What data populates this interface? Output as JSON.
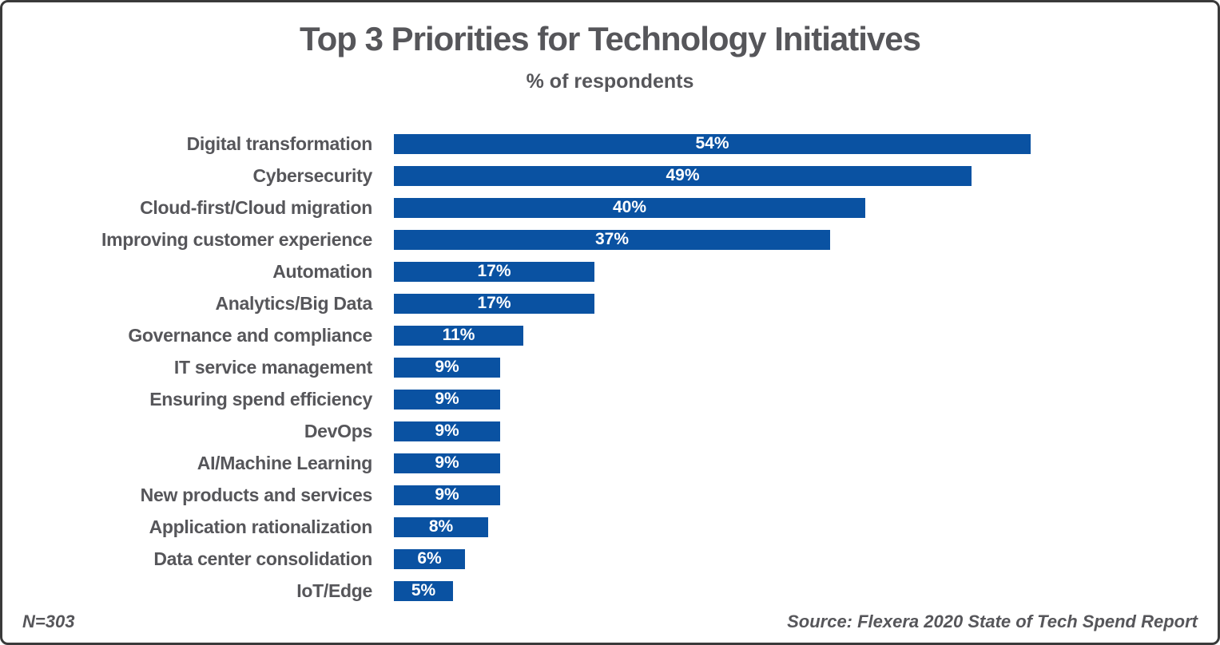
{
  "chart": {
    "title": "Top 3 Priorities for Technology Initiatives",
    "subtitle": "% of respondents",
    "footnote_left": "N=303",
    "footnote_right": "Source: Flexera 2020 State of Tech Spend Report",
    "bar_color": "#0a52a2",
    "text_color": "#56565a"
  },
  "chart_data": {
    "type": "bar",
    "orientation": "horizontal",
    "title": "Top 3 Priorities for Technology Initiatives",
    "subtitle": "% of respondents",
    "categories": [
      "Digital transformation",
      "Cybersecurity",
      "Cloud-first/Cloud migration",
      "Improving customer experience",
      "Automation",
      "Analytics/Big Data",
      "Governance and compliance",
      "IT service management",
      "Ensuring spend efficiency",
      "DevOps",
      "AI/Machine Learning",
      "New products and services",
      "Application rationalization",
      "Data center consolidation",
      "IoT/Edge"
    ],
    "values": [
      54,
      49,
      40,
      37,
      17,
      17,
      11,
      9,
      9,
      9,
      9,
      9,
      8,
      6,
      5
    ],
    "unit": "%",
    "xlabel": "",
    "ylabel": "",
    "xlim": [
      0,
      54
    ],
    "grid": false,
    "legend": false,
    "value_labels": "inside-center",
    "sample_size": "N=303",
    "source": "Source: Flexera 2020 State of Tech Spend Report"
  }
}
